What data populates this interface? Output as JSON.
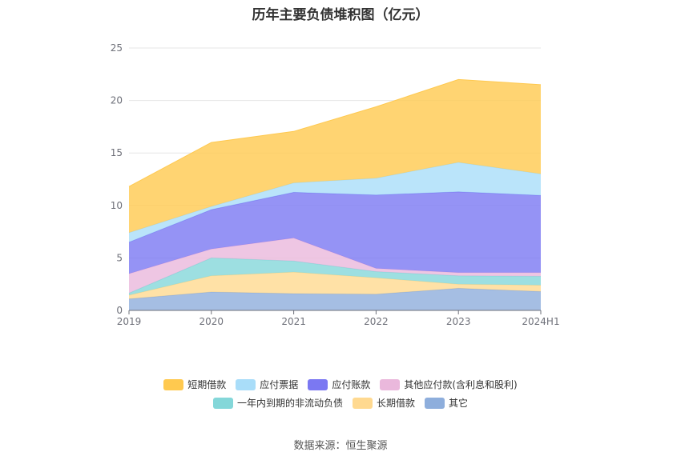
{
  "source_label": "数据来源：恒生聚源",
  "chart_data": {
    "type": "area",
    "stacked": true,
    "title": "历年主要负债堆积图（亿元）",
    "categories": [
      "2019",
      "2020",
      "2021",
      "2022",
      "2023",
      "2024H1"
    ],
    "ylim": [
      0,
      25
    ],
    "yticks": [
      0,
      5,
      10,
      15,
      20,
      25
    ],
    "grid": true,
    "legend_position": "bottom",
    "series": [
      {
        "name": "其它",
        "color": "#8eaedc",
        "values": [
          1.1,
          1.75,
          1.6,
          1.55,
          2.1,
          1.8
        ]
      },
      {
        "name": "长期借款",
        "color": "#ffd990",
        "values": [
          0.35,
          1.55,
          2.05,
          1.55,
          0.4,
          0.6
        ]
      },
      {
        "name": "一年内到期的非流动负债",
        "color": "#84d7d9",
        "values": [
          0.2,
          1.7,
          1.05,
          0.6,
          0.8,
          0.85
        ]
      },
      {
        "name": "其他应付款(含利息和股利)",
        "color": "#eab8dc",
        "values": [
          1.85,
          0.85,
          2.2,
          0.3,
          0.3,
          0.35
        ]
      },
      {
        "name": "应付账款",
        "color": "#7b78f2",
        "values": [
          3.0,
          3.75,
          4.35,
          7.0,
          7.7,
          7.35
        ]
      },
      {
        "name": "应付票据",
        "color": "#a9ddf9",
        "values": [
          0.9,
          0.3,
          0.9,
          1.6,
          2.8,
          2.05
        ]
      },
      {
        "name": "短期借款",
        "color": "#ffc94f",
        "values": [
          4.4,
          6.1,
          4.9,
          6.8,
          7.9,
          8.5
        ]
      }
    ],
    "legend_order": [
      "短期借款",
      "应付票据",
      "应付账款",
      "其他应付款(含利息和股利)",
      "一年内到期的非流动负债",
      "长期借款",
      "其它"
    ]
  }
}
